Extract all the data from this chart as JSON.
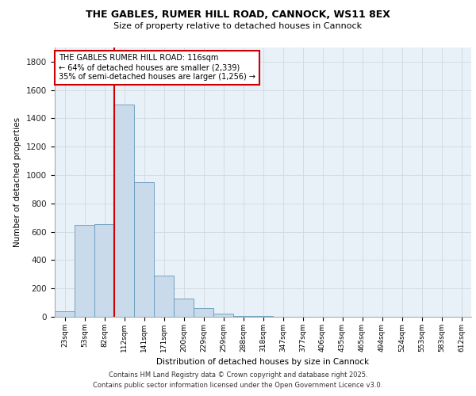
{
  "title_line1": "THE GABLES, RUMER HILL ROAD, CANNOCK, WS11 8EX",
  "title_line2": "Size of property relative to detached houses in Cannock",
  "xlabel": "Distribution of detached houses by size in Cannock",
  "ylabel": "Number of detached properties",
  "categories": [
    "23sqm",
    "53sqm",
    "82sqm",
    "112sqm",
    "141sqm",
    "171sqm",
    "200sqm",
    "229sqm",
    "259sqm",
    "288sqm",
    "318sqm",
    "347sqm",
    "377sqm",
    "406sqm",
    "435sqm",
    "465sqm",
    "494sqm",
    "524sqm",
    "553sqm",
    "583sqm",
    "612sqm"
  ],
  "values": [
    40,
    650,
    655,
    1500,
    950,
    290,
    130,
    60,
    20,
    5,
    3,
    2,
    1,
    1,
    0,
    0,
    0,
    0,
    0,
    0,
    0
  ],
  "bar_color": "#c9daea",
  "bar_edge_color": "#6699bb",
  "grid_color": "#d0d8e0",
  "background_color": "#e8f0f8",
  "red_line_color": "#cc0000",
  "annotation_text": "THE GABLES RUMER HILL ROAD: 116sqm\n← 64% of detached houses are smaller (2,339)\n35% of semi-detached houses are larger (1,256) →",
  "annotation_box_facecolor": "#ffffff",
  "annotation_box_edgecolor": "#cc0000",
  "ylim": [
    0,
    1900
  ],
  "yticks": [
    0,
    200,
    400,
    600,
    800,
    1000,
    1200,
    1400,
    1600,
    1800
  ],
  "footer_line1": "Contains HM Land Registry data © Crown copyright and database right 2025.",
  "footer_line2": "Contains public sector information licensed under the Open Government Licence v3.0."
}
